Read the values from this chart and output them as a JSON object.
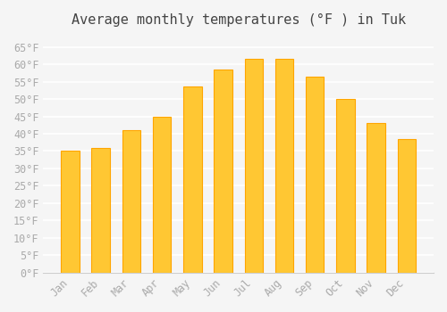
{
  "title": "Average monthly temperatures (°F ) in Tuk",
  "months": [
    "Jan",
    "Feb",
    "Mar",
    "Apr",
    "May",
    "Jun",
    "Jul",
    "Aug",
    "Sep",
    "Oct",
    "Nov",
    "Dec"
  ],
  "values": [
    35,
    36,
    41,
    45,
    53.5,
    58.5,
    61.5,
    61.5,
    56.5,
    50,
    43,
    38.5
  ],
  "bar_color_face": "#FFC733",
  "bar_color_edge": "#FFA500",
  "background_color": "#f5f5f5",
  "grid_color": "#ffffff",
  "ylim": [
    0,
    68
  ],
  "yticks": [
    0,
    5,
    10,
    15,
    20,
    25,
    30,
    35,
    40,
    45,
    50,
    55,
    60,
    65
  ],
  "ytick_labels": [
    "0°F",
    "5°F",
    "10°F",
    "15°F",
    "20°F",
    "25°F",
    "30°F",
    "35°F",
    "40°F",
    "45°F",
    "50°F",
    "55°F",
    "60°F",
    "65°F"
  ],
  "title_fontsize": 11,
  "tick_fontsize": 8.5,
  "tick_color": "#aaaaaa"
}
